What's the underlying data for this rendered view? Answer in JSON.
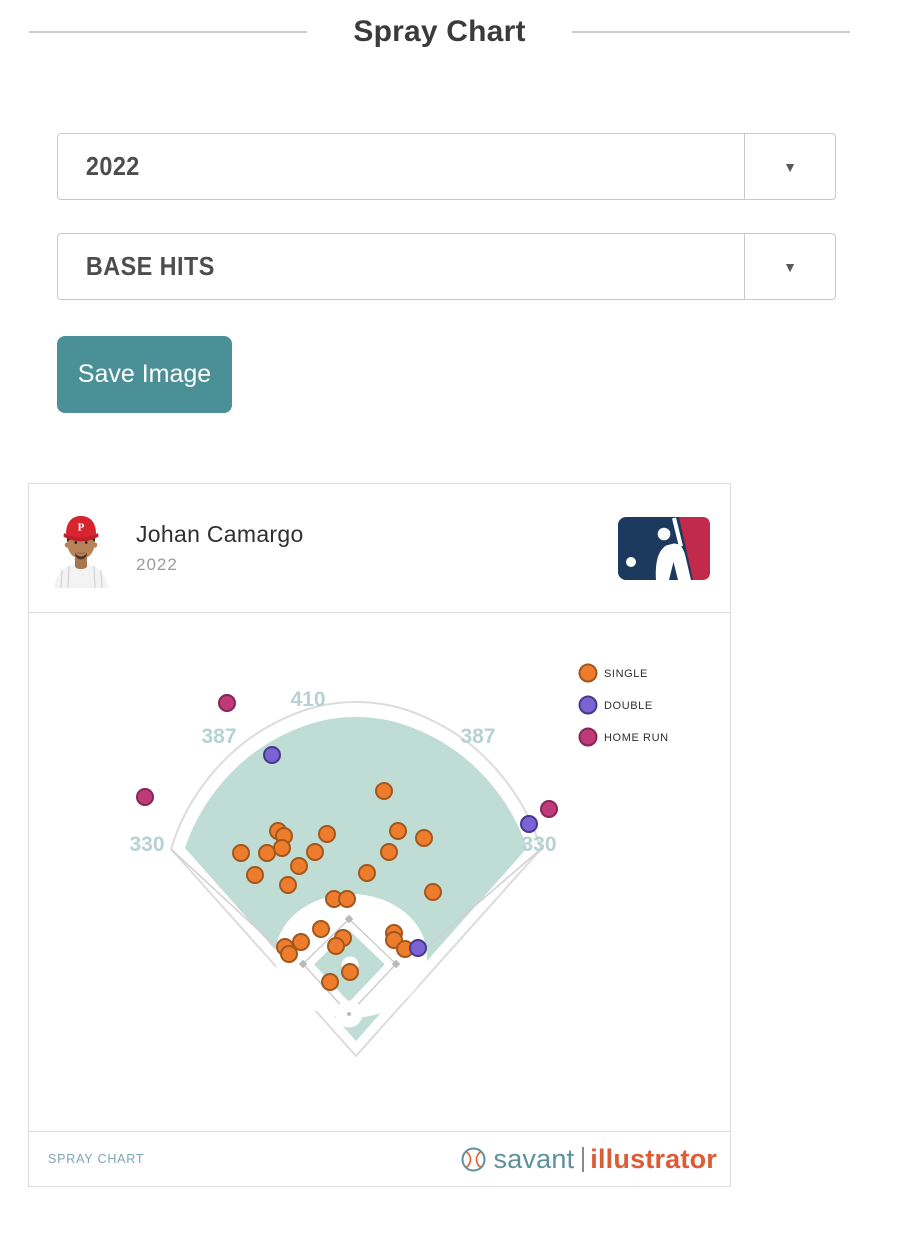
{
  "page": {
    "title": "Spray Chart"
  },
  "controls": {
    "season_select": {
      "value": "2022"
    },
    "hit_filter_select": {
      "value": "BASE HITS"
    },
    "dropdown_arrow": "▼",
    "save_button_label": "Save Image"
  },
  "card": {
    "player_name": "Johan Camargo",
    "player_season": "2022",
    "footer_label": "SPRAY CHART",
    "brand": {
      "name_left": "savant",
      "name_right": "illustrator"
    }
  },
  "chart_data": {
    "type": "scatter",
    "title": "Spray Chart",
    "player": "Johan Camargo",
    "season": "2022",
    "filter": "BASE HITS",
    "total_hits": 35,
    "outfield_distances": [
      "330",
      "387",
      "410",
      "387",
      "330"
    ],
    "legend": [
      {
        "label": "SINGLE",
        "fill": "#ee7c2d",
        "stroke": "#a2571d"
      },
      {
        "label": "DOUBLE",
        "fill": "#7b63d4",
        "stroke": "#453a8c"
      },
      {
        "label": "HOME RUN",
        "fill": "#bf3b77",
        "stroke": "#86255a"
      }
    ],
    "field_labels": [
      {
        "text": "330",
        "x": 118,
        "y": 238
      },
      {
        "text": "387",
        "x": 190,
        "y": 130
      },
      {
        "text": "410",
        "x": 279,
        "y": 93
      },
      {
        "text": "387",
        "x": 449,
        "y": 130
      },
      {
        "text": "330",
        "x": 510,
        "y": 238
      }
    ],
    "series": [
      {
        "name": "SINGLE",
        "count": 29,
        "points": [
          [
            355,
            178
          ],
          [
            249,
            218
          ],
          [
            255,
            223
          ],
          [
            298,
            221
          ],
          [
            369,
            218
          ],
          [
            395,
            225
          ],
          [
            212,
            240
          ],
          [
            238,
            240
          ],
          [
            253,
            235
          ],
          [
            286,
            239
          ],
          [
            360,
            239
          ],
          [
            270,
            253
          ],
          [
            226,
            262
          ],
          [
            338,
            260
          ],
          [
            259,
            272
          ],
          [
            404,
            279
          ],
          [
            305,
            286
          ],
          [
            318,
            286
          ],
          [
            292,
            316
          ],
          [
            272,
            329
          ],
          [
            256,
            334
          ],
          [
            260,
            341
          ],
          [
            314,
            325
          ],
          [
            307,
            333
          ],
          [
            365,
            320
          ],
          [
            365,
            327
          ],
          [
            376,
            336
          ],
          [
            321,
            359
          ],
          [
            301,
            369
          ]
        ]
      },
      {
        "name": "DOUBLE",
        "count": 3,
        "points": [
          [
            243,
            142
          ],
          [
            500,
            211
          ],
          [
            389,
            335
          ]
        ]
      },
      {
        "name": "HOME RUN",
        "count": 3,
        "points": [
          [
            198,
            90
          ],
          [
            116,
            184
          ],
          [
            520,
            196
          ]
        ]
      }
    ]
  },
  "colors": {
    "accent_teal": "#4b8f97",
    "field_fill": "#bfdcd5",
    "field_label": "#b7d2d2",
    "brand_teal": "#5c909b",
    "brand_orange": "#dd5b35"
  }
}
